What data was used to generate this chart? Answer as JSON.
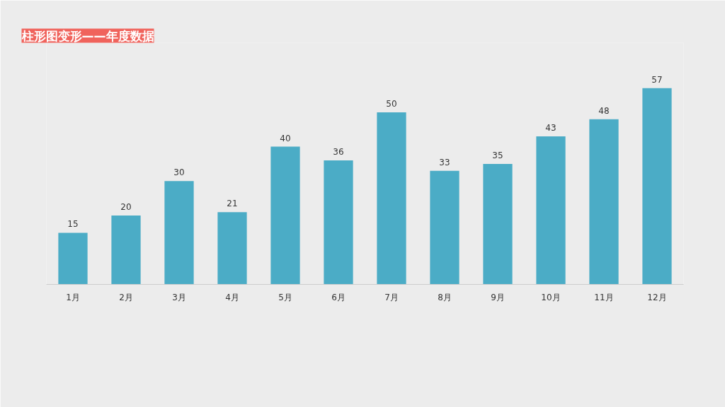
{
  "chart_data": {
    "type": "bar",
    "title": "柱形图变形——年度数据",
    "categories": [
      "1月",
      "2月",
      "3月",
      "4月",
      "5月",
      "6月",
      "7月",
      "8月",
      "9月",
      "10月",
      "11月",
      "12月"
    ],
    "values": [
      15,
      20,
      30,
      21,
      40,
      36,
      50,
      33,
      35,
      43,
      48,
      57
    ],
    "color": "#4bacc6",
    "data_labels": true,
    "grid": false
  }
}
